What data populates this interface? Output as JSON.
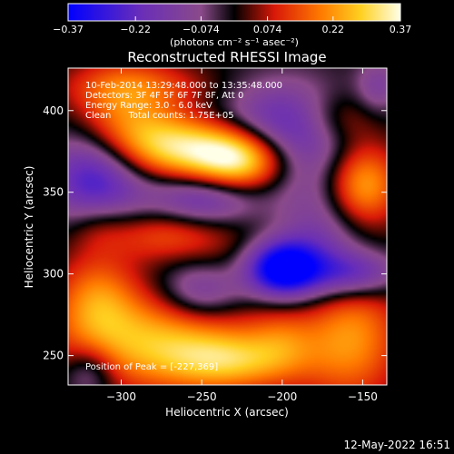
{
  "chart_data": {
    "type": "heatmap",
    "title": "Reconstructed RHESSI Image",
    "xlabel": "Heliocentric X (arcsec)",
    "ylabel": "Heliocentric Y (arcsec)",
    "xlim": [
      -333,
      -135
    ],
    "ylim": [
      232,
      426
    ],
    "x_ticks": [
      -300,
      -250,
      -200,
      -150
    ],
    "x_tick_labels": [
      "−300",
      "−250",
      "−200",
      "−150"
    ],
    "y_ticks": [
      250,
      300,
      350,
      400
    ],
    "y_tick_labels": [
      "250",
      "300",
      "350",
      "400"
    ],
    "colorbar": {
      "range": [
        -0.37,
        0.37
      ],
      "tick_values": [
        -0.37,
        -0.22,
        -0.074,
        0.074,
        0.22,
        0.37
      ],
      "tick_labels": [
        "−0.37",
        "−0.22",
        "−0.074",
        "0.074",
        "0.22",
        "0.37"
      ],
      "units_label": "(photons cm⁻² s⁻¹ asec⁻²)"
    },
    "annotations": {
      "time_range": "10-Feb-2014 13:29:48.000 to 13:35:48.000",
      "detectors": "Detectors: 3F 4F 5F 6F 7F 8F, Att 0",
      "energy_range": "Energy Range: 3.0 - 6.0 keV",
      "clean_counts": "Clean      Total counts: 1.75E+05",
      "peak_position": "Position of Peak = [-227,369]"
    },
    "peak": {
      "x": -227,
      "y": 369
    },
    "blobs": [
      {
        "x": -225,
        "y": 370,
        "sx": 22,
        "sy": 14,
        "amp": 0.42
      },
      {
        "x": -265,
        "y": 378,
        "sx": 28,
        "sy": 14,
        "amp": 0.28
      },
      {
        "x": -300,
        "y": 395,
        "sx": 22,
        "sy": 22,
        "amp": 0.2
      },
      {
        "x": -285,
        "y": 415,
        "sx": 35,
        "sy": 10,
        "amp": 0.1
      },
      {
        "x": -150,
        "y": 355,
        "sx": 16,
        "sy": 18,
        "amp": 0.26
      },
      {
        "x": -165,
        "y": 395,
        "sx": 18,
        "sy": 12,
        "amp": 0.12
      },
      {
        "x": -275,
        "y": 258,
        "sx": 42,
        "sy": 20,
        "amp": 0.26
      },
      {
        "x": -315,
        "y": 285,
        "sx": 18,
        "sy": 20,
        "amp": 0.18
      },
      {
        "x": -230,
        "y": 246,
        "sx": 28,
        "sy": 12,
        "amp": 0.18
      },
      {
        "x": -270,
        "y": 325,
        "sx": 30,
        "sy": 12,
        "amp": 0.16
      },
      {
        "x": -158,
        "y": 262,
        "sx": 22,
        "sy": 28,
        "amp": 0.22
      },
      {
        "x": -200,
        "y": 260,
        "sx": 15,
        "sy": 15,
        "amp": 0.1
      },
      {
        "x": -315,
        "y": 330,
        "sx": 14,
        "sy": 12,
        "amp": 0.08
      },
      {
        "x": -200,
        "y": 330,
        "sx": 20,
        "sy": 14,
        "amp": 0.05
      },
      {
        "x": -240,
        "y": 305,
        "sx": 18,
        "sy": 10,
        "amp": 0.04
      },
      {
        "x": -315,
        "y": 360,
        "sx": 22,
        "sy": 22,
        "amp": -0.3
      },
      {
        "x": -200,
        "y": 385,
        "sx": 30,
        "sy": 22,
        "amp": -0.28
      },
      {
        "x": -200,
        "y": 303,
        "sx": 16,
        "sy": 12,
        "amp": -0.4
      },
      {
        "x": -180,
        "y": 320,
        "sx": 22,
        "sy": 25,
        "amp": -0.18
      },
      {
        "x": -250,
        "y": 345,
        "sx": 24,
        "sy": 12,
        "amp": -0.22
      },
      {
        "x": -250,
        "y": 290,
        "sx": 18,
        "sy": 14,
        "amp": -0.18
      },
      {
        "x": -155,
        "y": 300,
        "sx": 20,
        "sy": 10,
        "amp": -0.22
      },
      {
        "x": -320,
        "y": 240,
        "sx": 12,
        "sy": 12,
        "amp": -0.14
      },
      {
        "x": -140,
        "y": 415,
        "sx": 10,
        "sy": 12,
        "amp": -0.12
      }
    ]
  },
  "footer": {
    "timestamp": "12-May-2022 16:51"
  },
  "colors": {
    "background": "#000000",
    "foreground": "#ffffff"
  }
}
